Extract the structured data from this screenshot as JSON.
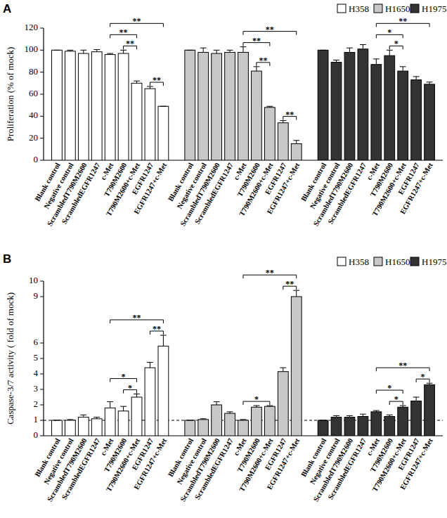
{
  "chart_data": [
    {
      "type": "bar",
      "title": "A",
      "y_label": "Proliferation (% of mock)",
      "categories": [
        "Blank control",
        "Negative control",
        "ScrambledT790M2600",
        "ScrambledEGFR1247",
        "c-Met",
        "T790M2600",
        "T790M2600+c-Met",
        "EGFR1247",
        "EGFR1247+c-Met"
      ],
      "series": [
        {
          "name": "H358",
          "color": "#ffffff",
          "values": [
            100,
            99,
            97,
            98.5,
            96,
            97,
            70,
            65,
            49
          ],
          "errors": [
            0,
            1,
            3,
            2,
            1,
            3,
            2,
            2,
            0
          ],
          "brackets": [
            {
              "from": 4,
              "to": 6,
              "label": "**"
            },
            {
              "from": 5,
              "to": 6,
              "label": "**"
            },
            {
              "from": 4,
              "to": 8,
              "label": "**"
            },
            {
              "from": 7,
              "to": 8,
              "label": "**"
            }
          ]
        },
        {
          "name": "H1650",
          "color": "#c8c8c8",
          "values": [
            100,
            98,
            97,
            98,
            98,
            81,
            48,
            34,
            15
          ],
          "errors": [
            0,
            4,
            3,
            2,
            5,
            4,
            1,
            2,
            3
          ],
          "brackets": [
            {
              "from": 4,
              "to": 6,
              "label": "**"
            },
            {
              "from": 5,
              "to": 6,
              "label": "**"
            },
            {
              "from": 4,
              "to": 8,
              "label": "**"
            },
            {
              "from": 7,
              "to": 8,
              "label": "**"
            }
          ]
        },
        {
          "name": "H1975",
          "color": "#333333",
          "values": [
            100,
            89,
            98,
            101,
            87,
            95,
            81,
            73,
            69
          ],
          "errors": [
            0,
            2,
            4,
            4,
            5,
            5,
            4,
            3,
            2
          ],
          "brackets": [
            {
              "from": 4,
              "to": 6,
              "label": "*"
            },
            {
              "from": 5,
              "to": 6,
              "label": "*"
            },
            {
              "from": 4,
              "to": 8,
              "label": "**"
            }
          ]
        }
      ],
      "ylim": [
        0,
        120
      ],
      "yticks": [
        0,
        20,
        40,
        60,
        80,
        100,
        120
      ],
      "grid": false,
      "legend": "top-right"
    },
    {
      "type": "bar",
      "title": "B",
      "y_label": "Caspase-3/7 activity ( fold of mock)",
      "categories": [
        "Blank control",
        "Negative control",
        "ScrambledT790M2600",
        "ScrambledEGFR1247",
        "c-Met",
        "T790M2600",
        "T790M2600+c-Met",
        "EGFR1247",
        "EGFR1247+c-Met"
      ],
      "series": [
        {
          "name": "H358",
          "color": "#ffffff",
          "values": [
            1,
            1,
            1.2,
            1.1,
            1.8,
            1.6,
            2.5,
            4.4,
            5.8
          ],
          "errors": [
            0,
            0.05,
            0.15,
            0.1,
            0.4,
            0.3,
            0.2,
            0.35,
            0.7
          ],
          "brackets": [
            {
              "from": 4,
              "to": 6,
              "label": "*"
            },
            {
              "from": 5,
              "to": 6,
              "label": "*"
            },
            {
              "from": 4,
              "to": 8,
              "label": "**"
            },
            {
              "from": 7,
              "to": 8,
              "label": "**"
            }
          ]
        },
        {
          "name": "H1650",
          "color": "#c8c8c8",
          "values": [
            1,
            1.05,
            2.0,
            1.45,
            1.0,
            1.85,
            1.9,
            4.15,
            9.0
          ],
          "errors": [
            0,
            0.05,
            0.2,
            0.1,
            0.05,
            0.1,
            0.05,
            0.25,
            0.4
          ],
          "brackets": [
            {
              "from": 4,
              "to": 6,
              "label": "*"
            },
            {
              "from": 4,
              "to": 8,
              "label": "**"
            },
            {
              "from": 7,
              "to": 8,
              "label": "**"
            }
          ]
        },
        {
          "name": "H1975",
          "color": "#333333",
          "values": [
            1,
            1.2,
            1.2,
            1.25,
            1.55,
            1.25,
            1.85,
            2.25,
            3.3
          ],
          "errors": [
            0,
            0.1,
            0.1,
            0.15,
            0.08,
            0.1,
            0.1,
            0.25,
            0.1
          ],
          "brackets": [
            {
              "from": 4,
              "to": 6,
              "label": "*"
            },
            {
              "from": 5,
              "to": 6,
              "label": "*"
            },
            {
              "from": 4,
              "to": 8,
              "label": "**"
            },
            {
              "from": 7,
              "to": 8,
              "label": "*"
            }
          ]
        }
      ],
      "ylim": [
        0,
        10
      ],
      "yticks": [
        0,
        1,
        2,
        3,
        4,
        5,
        6,
        9,
        10
      ],
      "grid": false,
      "legend": "top-right",
      "reference_line": 1
    }
  ]
}
